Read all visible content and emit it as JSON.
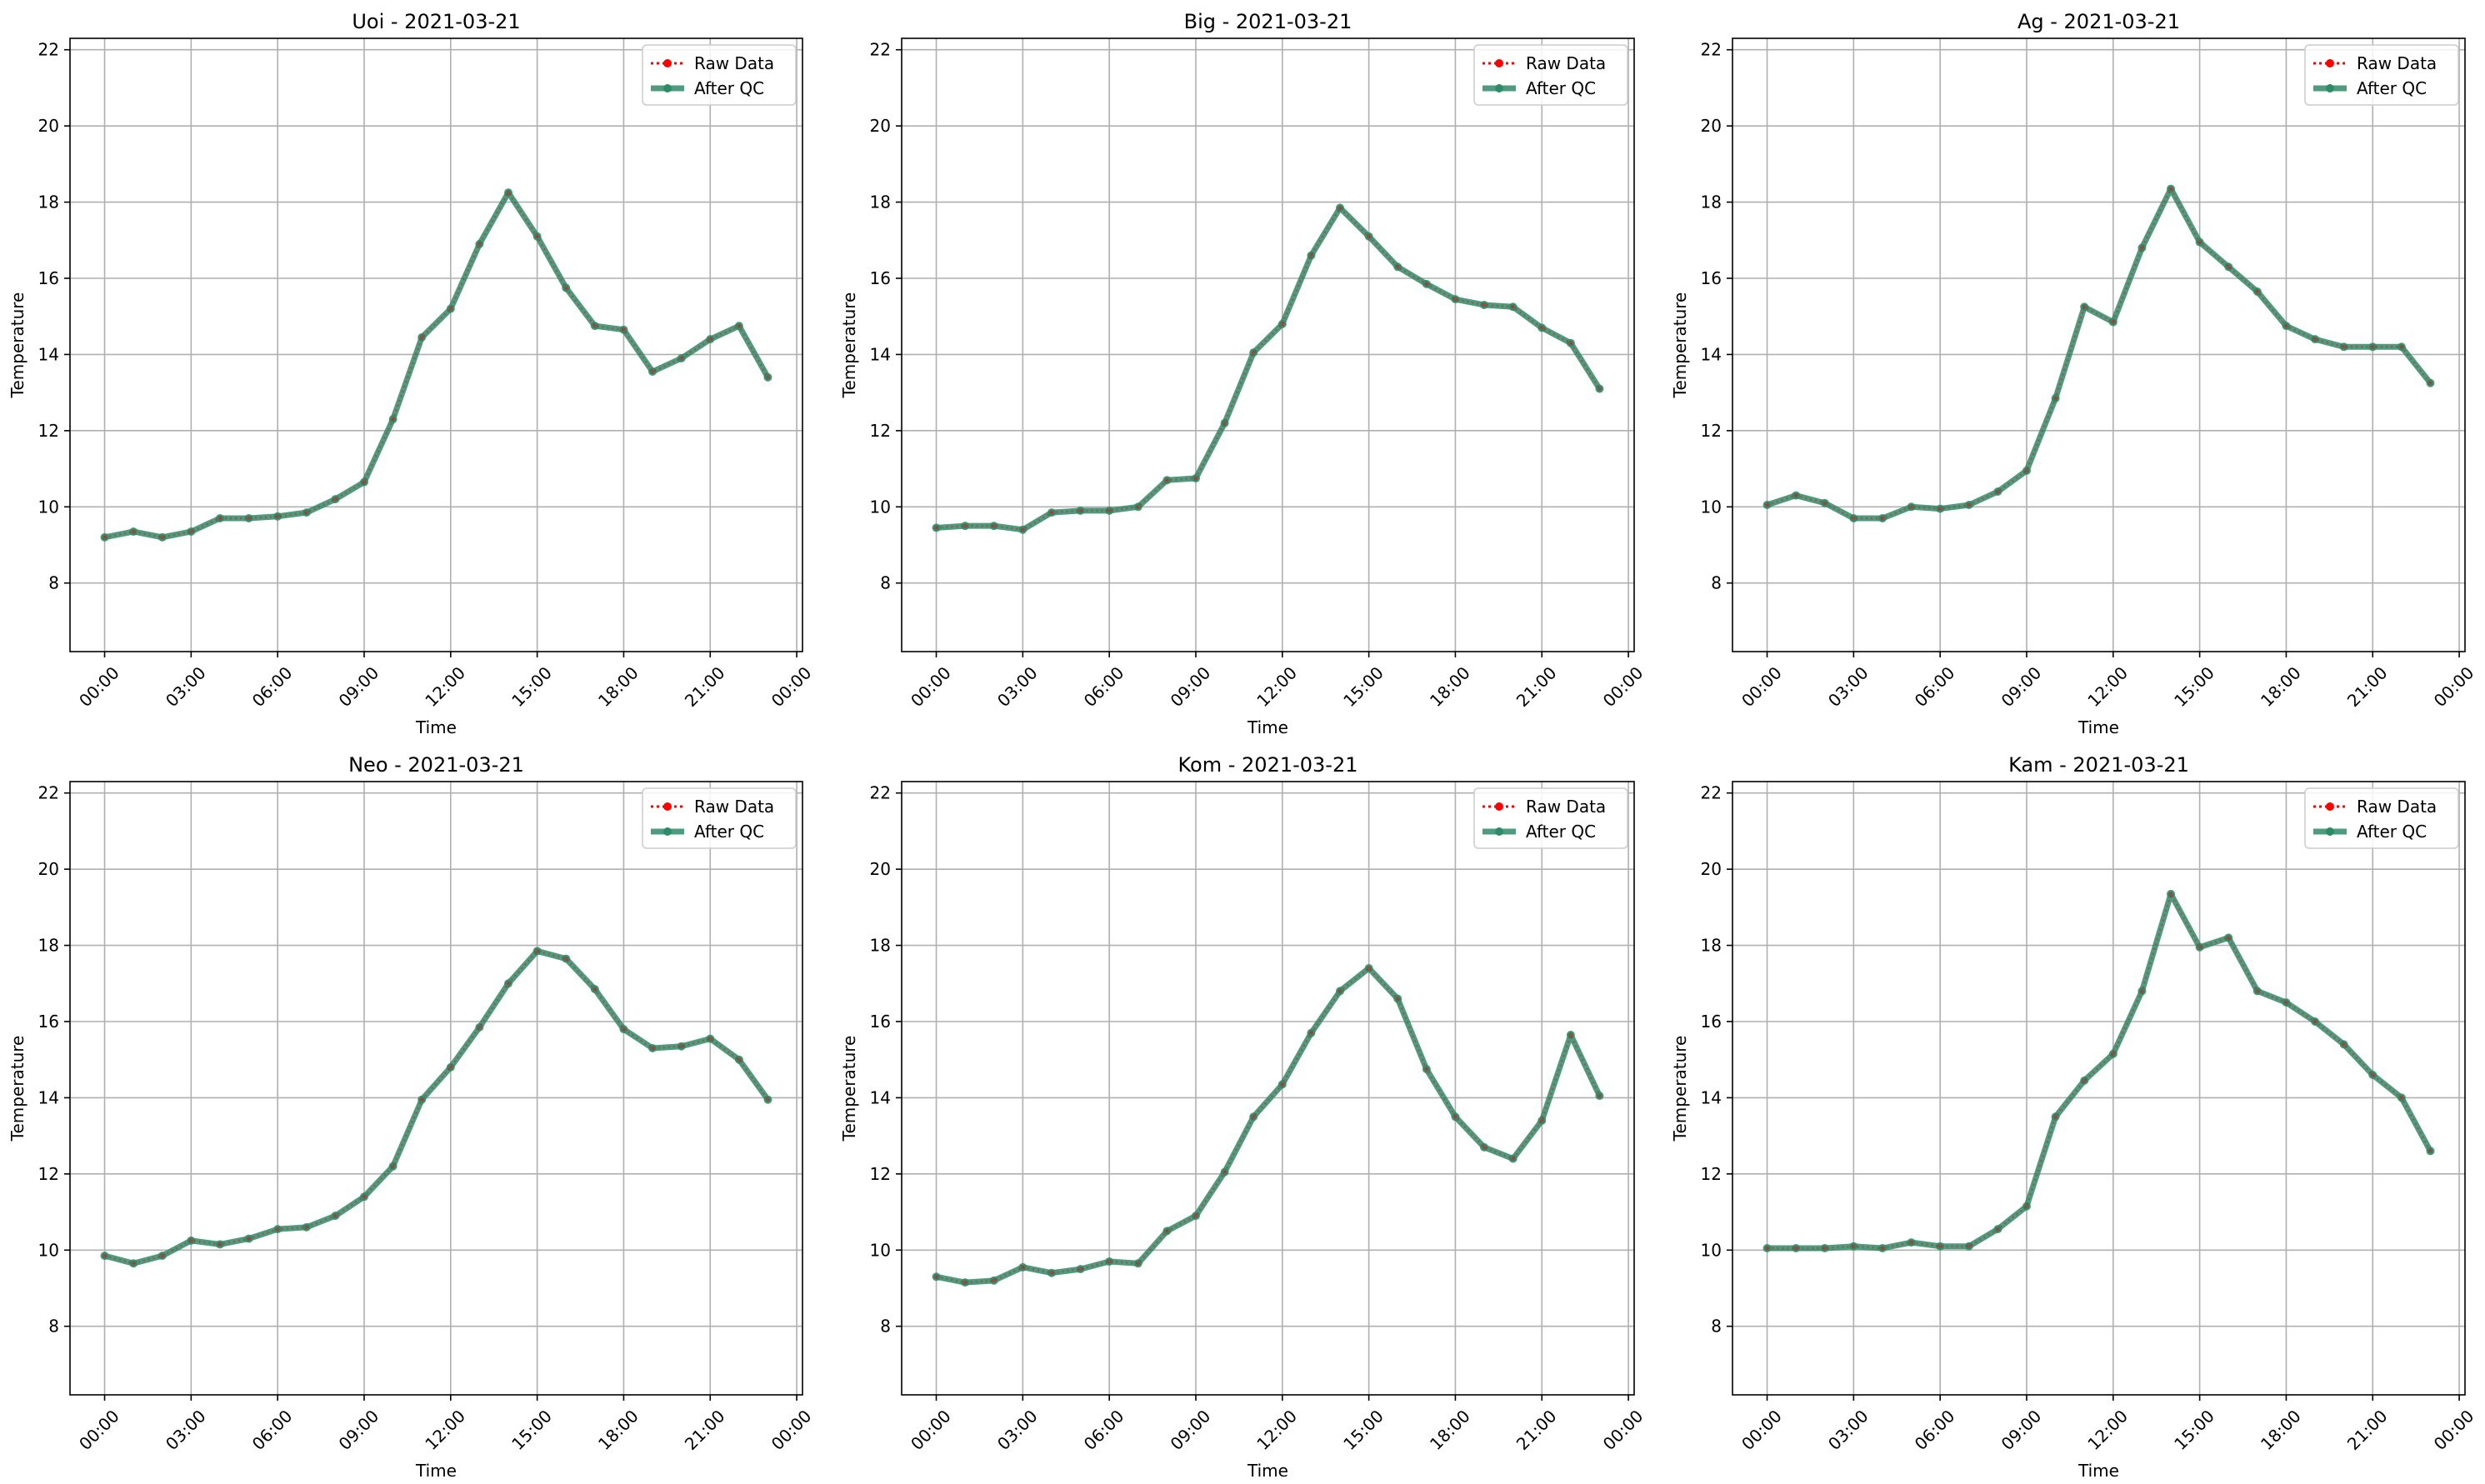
{
  "colors": {
    "raw": "#ff0000",
    "qc": "#2e8b6a",
    "grid": "#b0b0b0",
    "axis": "#000000"
  },
  "chart_data": [
    {
      "type": "line",
      "title": "Uoi - 2021-03-21",
      "xlabel": "Time",
      "ylabel": "Temperature",
      "xlim": [
        -1.2,
        24.2
      ],
      "ylim": [
        6.2,
        22.3
      ],
      "grid": true,
      "legend": "top-right",
      "xticks": [
        "00:00",
        "03:00",
        "06:00",
        "09:00",
        "12:00",
        "15:00",
        "18:00",
        "21:00",
        "00:00"
      ],
      "yticks": [
        8,
        10,
        12,
        14,
        16,
        18,
        20,
        22
      ],
      "x": [
        0,
        1,
        2,
        3,
        4,
        5,
        6,
        7,
        8,
        9,
        10,
        11,
        12,
        13,
        14,
        15,
        16,
        17,
        18,
        19,
        20,
        21,
        22,
        23
      ],
      "series": [
        {
          "name": "Raw Data",
          "values": [
            9.2,
            9.35,
            9.2,
            9.35,
            9.7,
            9.7,
            9.75,
            9.85,
            10.2,
            10.65,
            12.3,
            14.45,
            15.2,
            16.9,
            18.25,
            17.1,
            15.75,
            14.75,
            14.65,
            13.55,
            13.9,
            14.4,
            14.75,
            13.4
          ]
        },
        {
          "name": "After QC",
          "values": [
            9.2,
            9.35,
            9.2,
            9.35,
            9.7,
            9.7,
            9.75,
            9.85,
            10.2,
            10.65,
            12.3,
            14.45,
            15.2,
            16.9,
            18.25,
            17.1,
            15.75,
            14.75,
            14.65,
            13.55,
            13.9,
            14.4,
            14.75,
            13.4
          ]
        }
      ]
    },
    {
      "type": "line",
      "title": "Big - 2021-03-21",
      "xlabel": "Time",
      "ylabel": "Temperature",
      "xlim": [
        -1.2,
        24.2
      ],
      "ylim": [
        6.2,
        22.3
      ],
      "grid": true,
      "legend": "top-right",
      "xticks": [
        "00:00",
        "03:00",
        "06:00",
        "09:00",
        "12:00",
        "15:00",
        "18:00",
        "21:00",
        "00:00"
      ],
      "yticks": [
        8,
        10,
        12,
        14,
        16,
        18,
        20,
        22
      ],
      "x": [
        0,
        1,
        2,
        3,
        4,
        5,
        6,
        7,
        8,
        9,
        10,
        11,
        12,
        13,
        14,
        15,
        16,
        17,
        18,
        19,
        20,
        21,
        22,
        23
      ],
      "series": [
        {
          "name": "Raw Data",
          "values": [
            9.45,
            9.5,
            9.5,
            9.4,
            9.85,
            9.9,
            9.9,
            10.0,
            10.7,
            10.75,
            12.2,
            14.05,
            14.8,
            16.6,
            17.85,
            17.1,
            16.3,
            15.85,
            15.45,
            15.3,
            15.25,
            14.7,
            14.3,
            13.1
          ]
        },
        {
          "name": "After QC",
          "values": [
            9.45,
            9.5,
            9.5,
            9.4,
            9.85,
            9.9,
            9.9,
            10.0,
            10.7,
            10.75,
            12.2,
            14.05,
            14.8,
            16.6,
            17.85,
            17.1,
            16.3,
            15.85,
            15.45,
            15.3,
            15.25,
            14.7,
            14.3,
            13.1
          ]
        }
      ]
    },
    {
      "type": "line",
      "title": "Ag - 2021-03-21",
      "xlabel": "Time",
      "ylabel": "Temperature",
      "xlim": [
        -1.2,
        24.2
      ],
      "ylim": [
        6.2,
        22.3
      ],
      "grid": true,
      "legend": "top-right",
      "xticks": [
        "00:00",
        "03:00",
        "06:00",
        "09:00",
        "12:00",
        "15:00",
        "18:00",
        "21:00",
        "00:00"
      ],
      "yticks": [
        8,
        10,
        12,
        14,
        16,
        18,
        20,
        22
      ],
      "x": [
        0,
        1,
        2,
        3,
        4,
        5,
        6,
        7,
        8,
        9,
        10,
        11,
        12,
        13,
        14,
        15,
        16,
        17,
        18,
        19,
        20,
        21,
        22,
        23
      ],
      "series": [
        {
          "name": "Raw Data",
          "values": [
            10.05,
            10.3,
            10.1,
            9.7,
            9.7,
            10.0,
            9.95,
            10.05,
            10.4,
            10.95,
            12.85,
            15.25,
            14.85,
            16.8,
            18.35,
            16.95,
            16.3,
            15.65,
            14.75,
            14.4,
            14.2,
            14.2,
            14.2,
            13.25
          ]
        },
        {
          "name": "After QC",
          "values": [
            10.05,
            10.3,
            10.1,
            9.7,
            9.7,
            10.0,
            9.95,
            10.05,
            10.4,
            10.95,
            12.85,
            15.25,
            14.85,
            16.8,
            18.35,
            16.95,
            16.3,
            15.65,
            14.75,
            14.4,
            14.2,
            14.2,
            14.2,
            13.25
          ]
        }
      ]
    },
    {
      "type": "line",
      "title": "Neo - 2021-03-21",
      "xlabel": "Time",
      "ylabel": "Temperature",
      "xlim": [
        -1.2,
        24.2
      ],
      "ylim": [
        6.2,
        22.3
      ],
      "grid": true,
      "legend": "top-right",
      "xticks": [
        "00:00",
        "03:00",
        "06:00",
        "09:00",
        "12:00",
        "15:00",
        "18:00",
        "21:00",
        "00:00"
      ],
      "yticks": [
        8,
        10,
        12,
        14,
        16,
        18,
        20,
        22
      ],
      "x": [
        0,
        1,
        2,
        3,
        4,
        5,
        6,
        7,
        8,
        9,
        10,
        11,
        12,
        13,
        14,
        15,
        16,
        17,
        18,
        19,
        20,
        21,
        22,
        23
      ],
      "series": [
        {
          "name": "Raw Data",
          "values": [
            9.85,
            9.65,
            9.85,
            10.25,
            10.15,
            10.3,
            10.55,
            10.6,
            10.9,
            11.4,
            12.2,
            13.95,
            14.8,
            15.85,
            17.0,
            17.85,
            17.65,
            16.85,
            15.8,
            15.3,
            15.35,
            15.55,
            15.0,
            13.95
          ]
        },
        {
          "name": "After QC",
          "values": [
            9.85,
            9.65,
            9.85,
            10.25,
            10.15,
            10.3,
            10.55,
            10.6,
            10.9,
            11.4,
            12.2,
            13.95,
            14.8,
            15.85,
            17.0,
            17.85,
            17.65,
            16.85,
            15.8,
            15.3,
            15.35,
            15.55,
            15.0,
            13.95
          ]
        }
      ]
    },
    {
      "type": "line",
      "title": "Kom - 2021-03-21",
      "xlabel": "Time",
      "ylabel": "Temperature",
      "xlim": [
        -1.2,
        24.2
      ],
      "ylim": [
        6.2,
        22.3
      ],
      "grid": true,
      "legend": "top-right",
      "xticks": [
        "00:00",
        "03:00",
        "06:00",
        "09:00",
        "12:00",
        "15:00",
        "18:00",
        "21:00",
        "00:00"
      ],
      "yticks": [
        8,
        10,
        12,
        14,
        16,
        18,
        20,
        22
      ],
      "x": [
        0,
        1,
        2,
        3,
        4,
        5,
        6,
        7,
        8,
        9,
        10,
        11,
        12,
        13,
        14,
        15,
        16,
        17,
        18,
        19,
        20,
        21,
        22,
        23
      ],
      "series": [
        {
          "name": "Raw Data",
          "values": [
            9.3,
            9.15,
            9.2,
            9.55,
            9.4,
            9.5,
            9.7,
            9.65,
            10.5,
            10.9,
            12.05,
            13.5,
            14.35,
            15.7,
            16.8,
            17.4,
            16.6,
            14.75,
            13.5,
            12.7,
            12.4,
            13.4,
            15.65,
            14.05
          ]
        },
        {
          "name": "After QC",
          "values": [
            9.3,
            9.15,
            9.2,
            9.55,
            9.4,
            9.5,
            9.7,
            9.65,
            10.5,
            10.9,
            12.05,
            13.5,
            14.35,
            15.7,
            16.8,
            17.4,
            16.6,
            14.75,
            13.5,
            12.7,
            12.4,
            13.4,
            15.65,
            14.05
          ]
        }
      ]
    },
    {
      "type": "line",
      "title": "Kam - 2021-03-21",
      "xlabel": "Time",
      "ylabel": "Temperature",
      "xlim": [
        -1.2,
        24.2
      ],
      "ylim": [
        6.2,
        22.3
      ],
      "grid": true,
      "legend": "top-right",
      "xticks": [
        "00:00",
        "03:00",
        "06:00",
        "09:00",
        "12:00",
        "15:00",
        "18:00",
        "21:00",
        "00:00"
      ],
      "yticks": [
        8,
        10,
        12,
        14,
        16,
        18,
        20,
        22
      ],
      "x": [
        0,
        1,
        2,
        3,
        4,
        5,
        6,
        7,
        8,
        9,
        10,
        11,
        12,
        13,
        14,
        15,
        16,
        17,
        18,
        19,
        20,
        21,
        22,
        23
      ],
      "series": [
        {
          "name": "Raw Data",
          "values": [
            10.05,
            10.05,
            10.05,
            10.1,
            10.05,
            10.2,
            10.1,
            10.1,
            10.55,
            11.15,
            13.5,
            14.45,
            15.15,
            16.8,
            19.35,
            17.95,
            18.2,
            16.8,
            16.5,
            16.0,
            15.4,
            14.6,
            14.0,
            12.6
          ]
        },
        {
          "name": "After QC",
          "values": [
            10.05,
            10.05,
            10.05,
            10.1,
            10.05,
            10.2,
            10.1,
            10.1,
            10.55,
            11.15,
            13.5,
            14.45,
            15.15,
            16.8,
            19.35,
            17.95,
            18.2,
            16.8,
            16.5,
            16.0,
            15.4,
            14.6,
            14.0,
            12.6
          ]
        }
      ]
    }
  ]
}
